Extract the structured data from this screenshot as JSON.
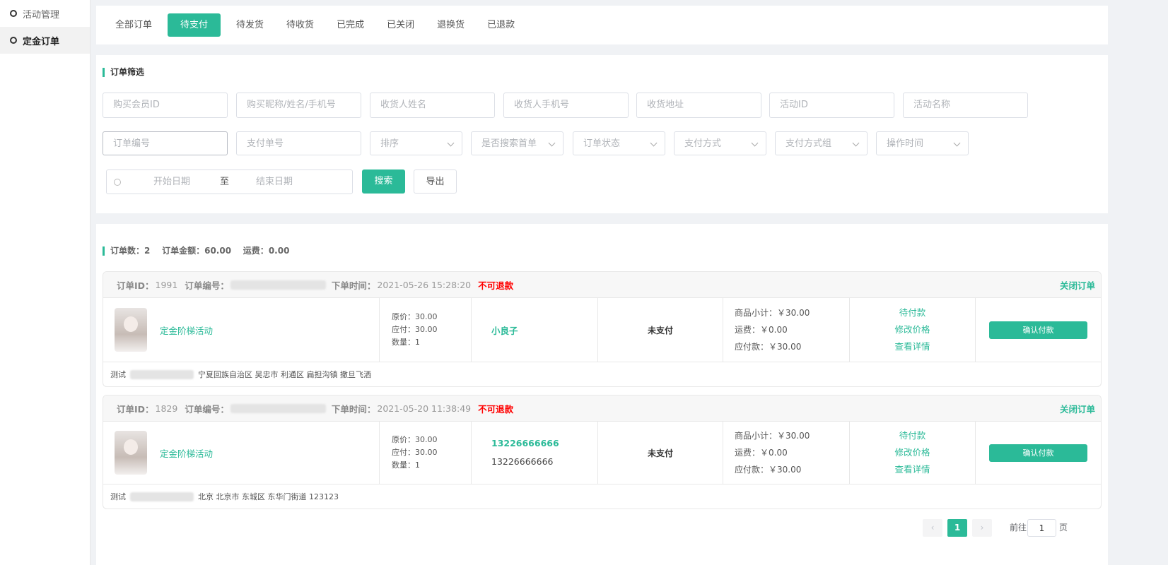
{
  "sidebar": {
    "items": [
      {
        "label": "活动管理"
      },
      {
        "label": "定金订单"
      }
    ]
  },
  "tabs": [
    "全部订单",
    "待支付",
    "待发货",
    "待收货",
    "已完成",
    "已关闭",
    "退换货",
    "已退款"
  ],
  "filter": {
    "title": "订单筛选",
    "row1": [
      "购买会员ID",
      "购买昵称/姓名/手机号",
      "收货人姓名",
      "收货人手机号",
      "收货地址",
      "活动ID",
      "活动名称"
    ],
    "row2_inputs": [
      "订单编号",
      "支付单号"
    ],
    "row2_selects": [
      "排序",
      "是否搜索首单",
      "订单状态",
      "支付方式",
      "支付方式组",
      "操作时间"
    ],
    "start_date": "开始日期",
    "to": "至",
    "end_date": "结束日期",
    "search": "搜索",
    "export": "导出"
  },
  "summary": {
    "count_label": "订单数：",
    "count": "2",
    "amount_label": "订单金额：",
    "amount": "60.00",
    "freight_label": "运费：",
    "freight": "0.00"
  },
  "labels": {
    "order_id": "订单ID：",
    "order_no": "订单编号：",
    "order_time": "下单时间：",
    "no_refund": "不可退款",
    "close": "关闭订单",
    "orig": "原价：",
    "payable": "应付：",
    "qty": "数量：",
    "subtotal": "商品小计：",
    "freight": "运费：",
    "due": "应付款：",
    "confirm": "确认付款"
  },
  "orders": [
    {
      "id": "1991",
      "time": "2021-05-26 15:28:20",
      "activity": "定金阶梯活动",
      "orig": "30.00",
      "pay": "30.00",
      "qty": "1",
      "buyer": "小良子",
      "buyer2": "",
      "status": "未支付",
      "subtotal": "￥30.00",
      "freight": "￥0.00",
      "due": "￥30.00",
      "actions": [
        "待付款",
        "修改价格",
        "查看详情"
      ],
      "addr_name": "测试",
      "address": "宁夏回族自治区 吴忠市 利通区 扁担沟镇 撒旦飞洒"
    },
    {
      "id": "1829",
      "time": "2021-05-20 11:38:49",
      "activity": "定金阶梯活动",
      "orig": "30.00",
      "pay": "30.00",
      "qty": "1",
      "buyer": "13226666666",
      "buyer2": "13226666666",
      "status": "未支付",
      "subtotal": "￥30.00",
      "freight": "￥0.00",
      "due": "￥30.00",
      "actions": [
        "待付款",
        "修改价格",
        "查看详情"
      ],
      "addr_name": "测试",
      "address": "北京 北京市 东城区 东华门街道 123123"
    }
  ],
  "pagination": {
    "prev": "‹",
    "current": "1",
    "next": "›",
    "goto": "前往",
    "page_value": "1",
    "page_unit": "页"
  },
  "colors": {
    "accent": "#2bba98",
    "danger": "#ff0000"
  }
}
